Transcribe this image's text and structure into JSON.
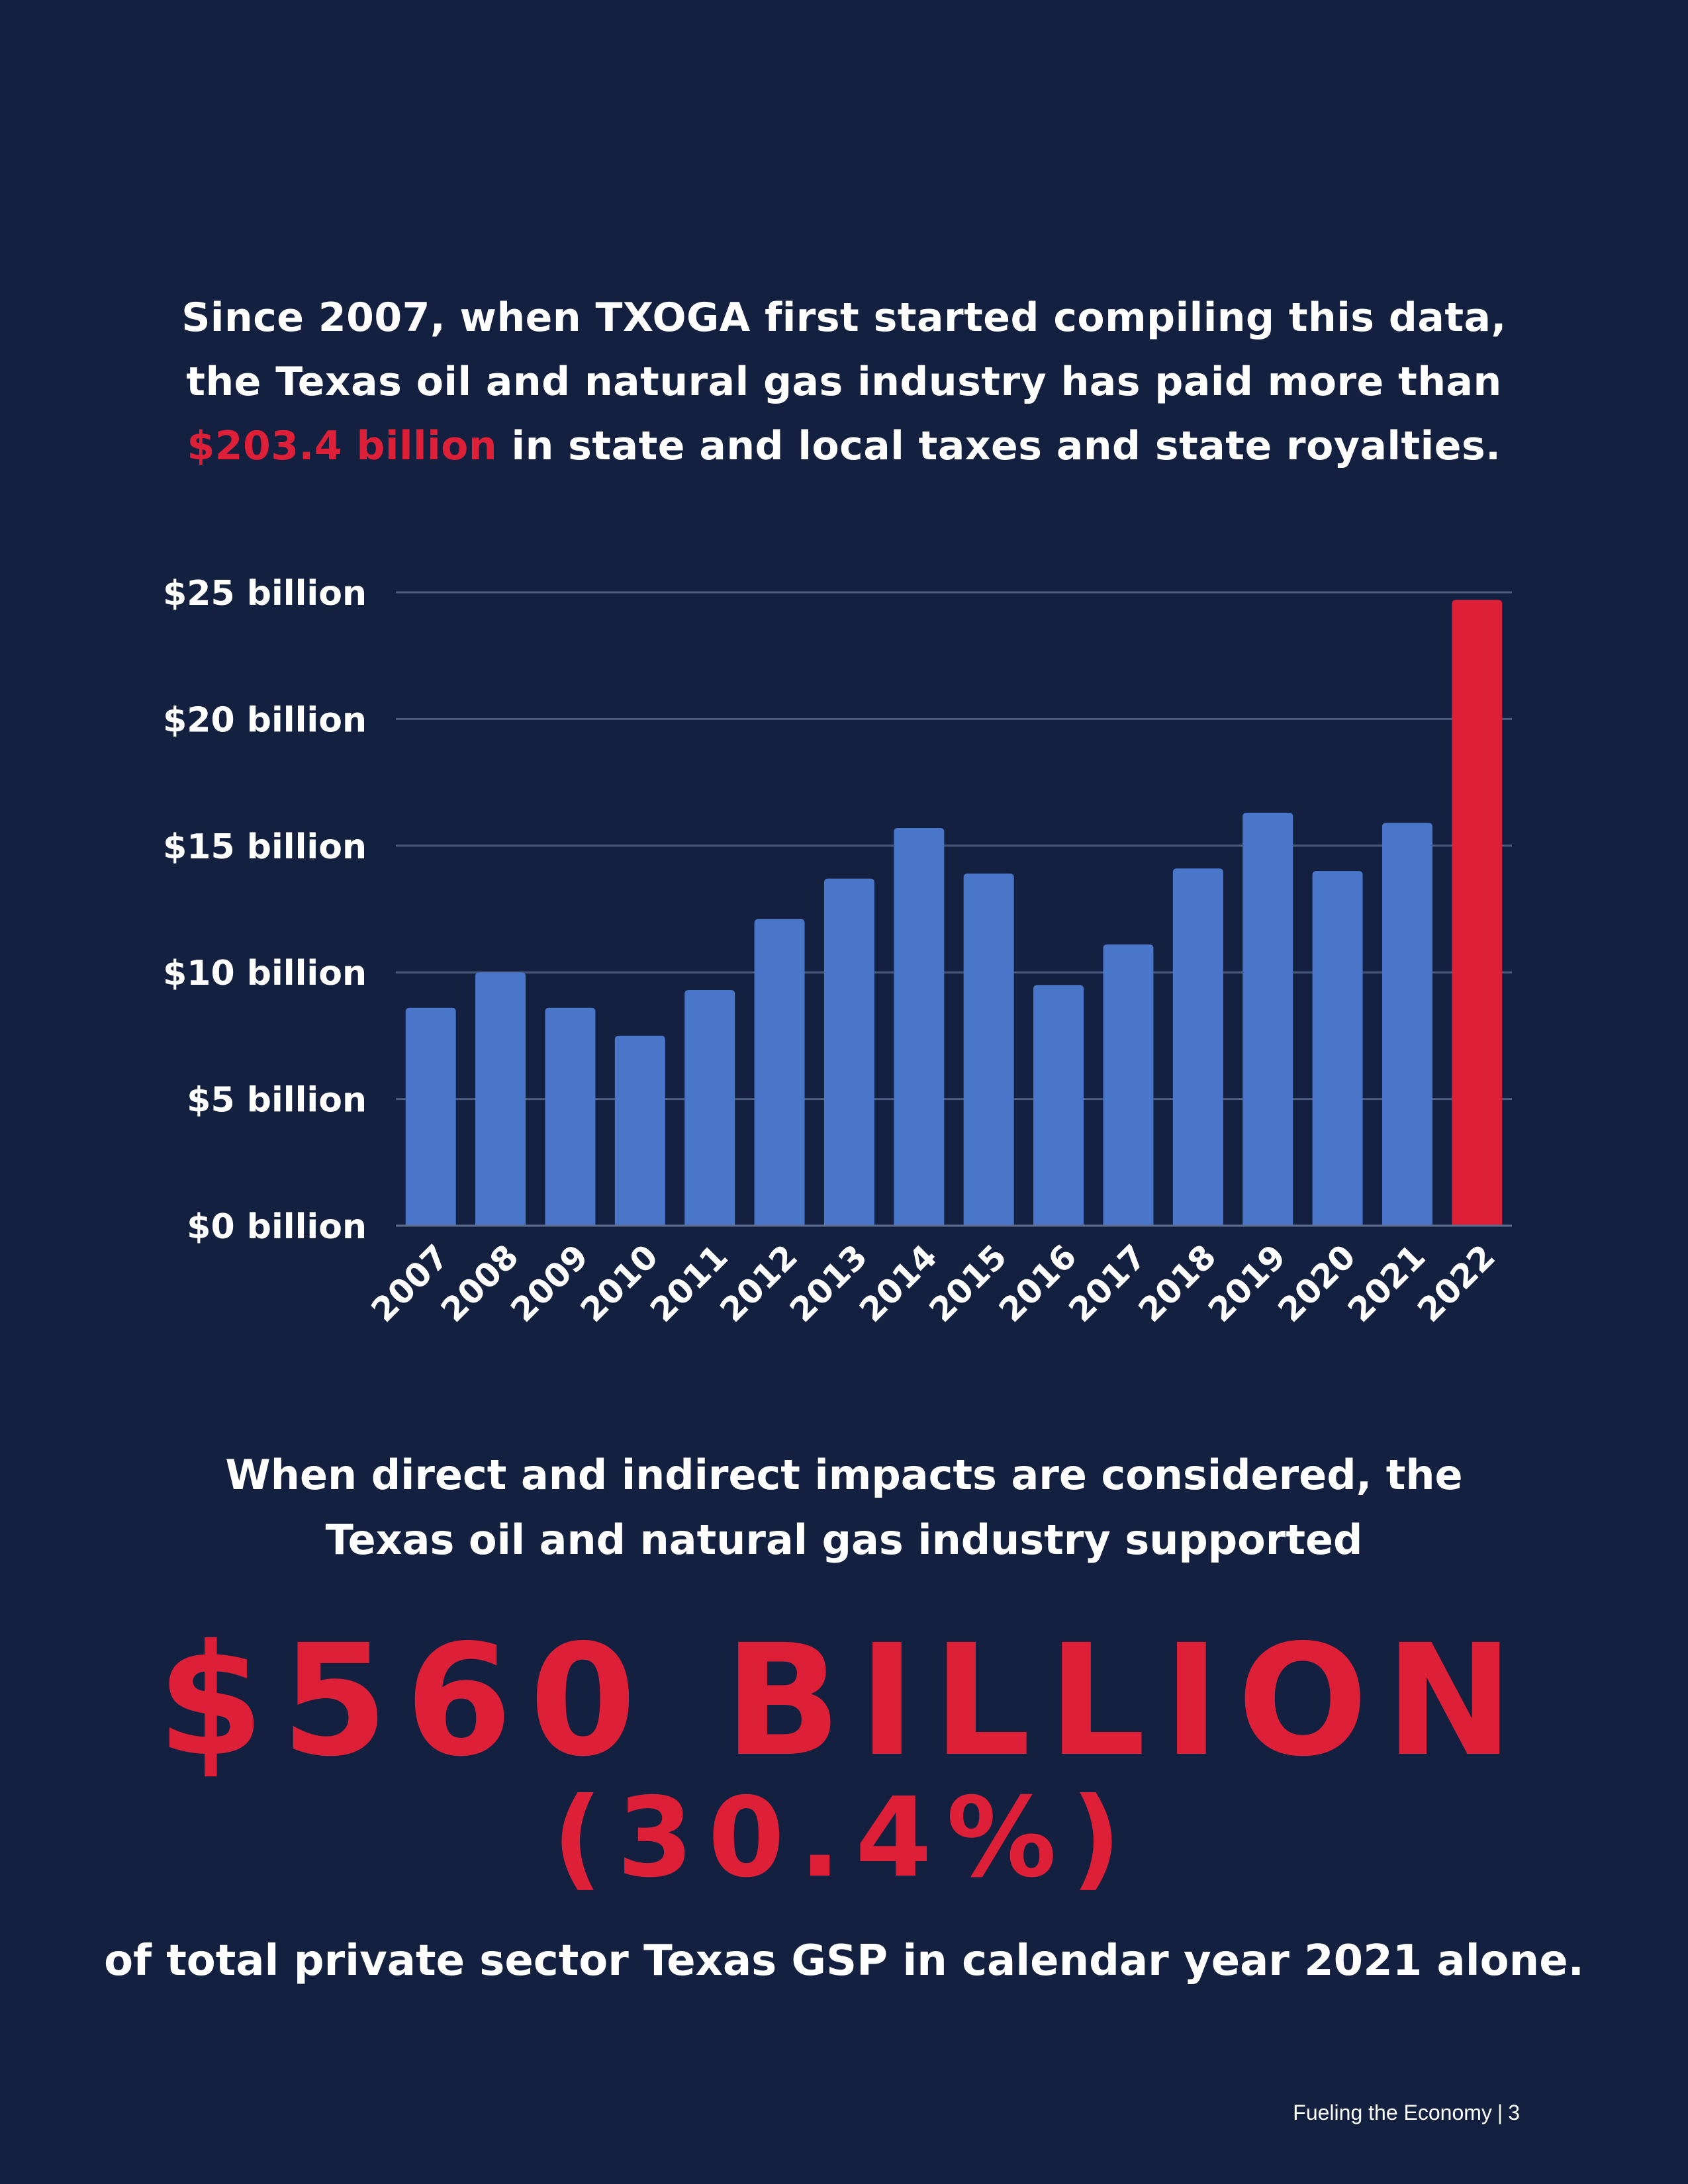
{
  "intro": {
    "line1": "Since 2007, when TXOGA first started compiling this data,",
    "line2": "the Texas oil and natural gas industry has paid more than",
    "highlight": "$203.4 billion",
    "line3_rest": " in state and local taxes and state royalties."
  },
  "chart_data": {
    "type": "bar",
    "title": "",
    "xlabel": "",
    "ylabel": "",
    "ylim": [
      0,
      25
    ],
    "grid": true,
    "y_ticks": [
      "$0 billion",
      "$5 billion",
      "$10 billion",
      "$15 billion",
      "$20 billion",
      "$25 billion"
    ],
    "y_tick_values": [
      0,
      5,
      10,
      15,
      20,
      25
    ],
    "categories": [
      "2007",
      "2008",
      "2009",
      "2010",
      "2011",
      "2012",
      "2013",
      "2014",
      "2015",
      "2016",
      "2017",
      "2018",
      "2019",
      "2020",
      "2021",
      "2022"
    ],
    "values": [
      8.6,
      10.0,
      8.6,
      7.5,
      9.3,
      12.1,
      13.7,
      15.7,
      13.9,
      9.5,
      11.1,
      14.1,
      16.3,
      14.0,
      15.9,
      24.7
    ],
    "highlight_category": "2022",
    "colors": {
      "bar": "#4a76c9",
      "highlight": "#dd2038",
      "grid": "#4b5c80"
    }
  },
  "impact": {
    "line1": "When direct and indirect impacts are considered, the",
    "line2": "Texas oil and natural gas industry supported",
    "amount": "$560 BILLION",
    "percent": "(30.4%)",
    "tail": "of total private sector Texas GSP in calendar year 2021 alone."
  },
  "footer": {
    "title": "Fueling the Economy",
    "separator": "|",
    "page": "3"
  },
  "colors": {
    "background": "#132040",
    "accent": "#dd2038",
    "text": "#ffffff"
  }
}
